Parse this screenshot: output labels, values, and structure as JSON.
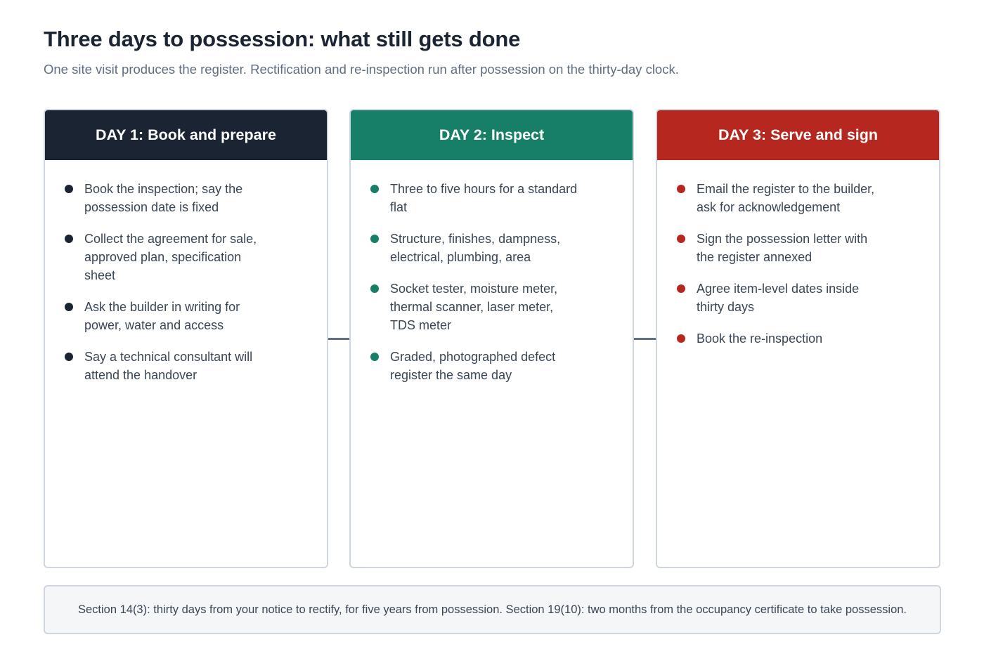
{
  "title": "Three days to possession: what still gets done",
  "subtitle": "One site visit produces the register. Rectification and re-inspection run after possession on the thirty-day clock.",
  "days": [
    {
      "heading": "DAY 1: Book and prepare",
      "color": "#1b2433",
      "items": [
        "Book the inspection; say the possession date is fixed",
        "Collect the agreement for sale, approved plan, specification sheet",
        "Ask the builder in writing for power, water and access",
        "Say a technical consultant will attend the handover"
      ]
    },
    {
      "heading": "DAY 2: Inspect",
      "color": "#177f67",
      "items": [
        "Three to five hours for a standard flat",
        "Structure, finishes, dampness, electrical, plumbing, area",
        "Socket tester, moisture meter, thermal scanner, laser meter, TDS meter",
        "Graded, photographed defect register the same day"
      ]
    },
    {
      "heading": "DAY 3: Serve and sign",
      "color": "#b5271f",
      "items": [
        "Email the register to the builder, ask for acknowledgement",
        "Sign the possession letter with the register annexed",
        "Agree item-level dates inside thirty days",
        "Book the re-inspection"
      ]
    }
  ],
  "footer": "Section 14(3): thirty days from your notice to rectify, for five years from possession. Section 19(10): two months from the occupancy certificate to take possession."
}
